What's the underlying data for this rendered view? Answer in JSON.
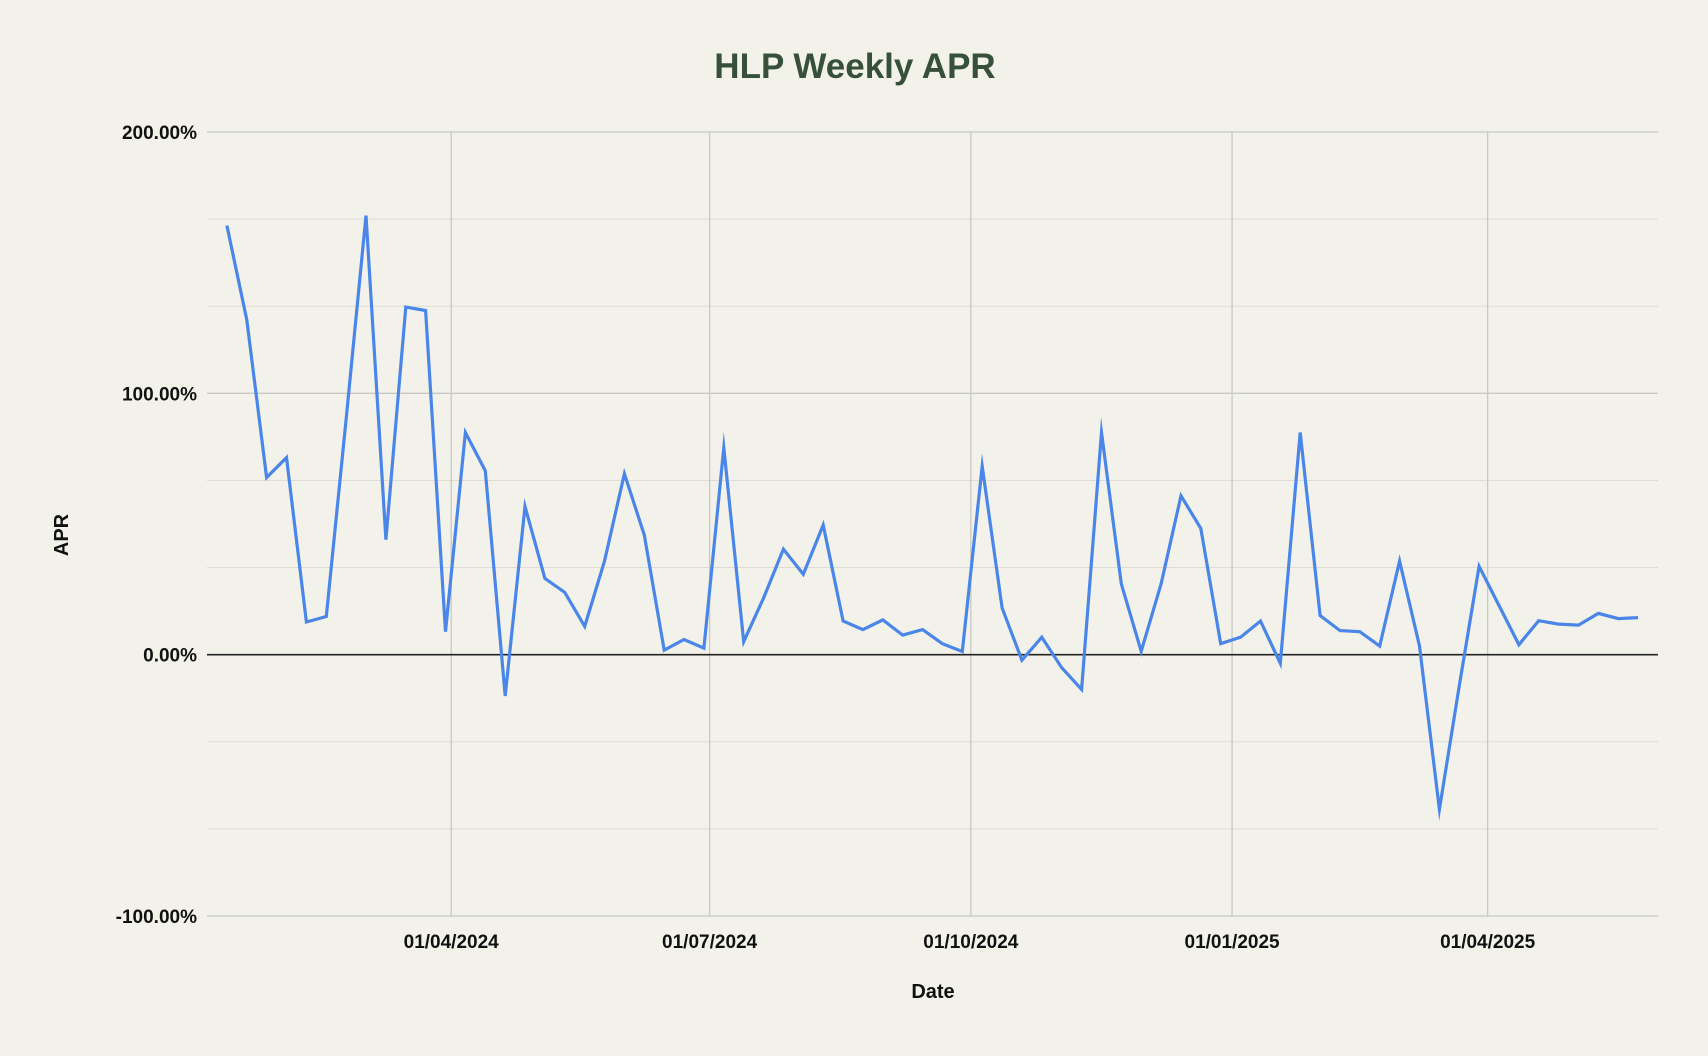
{
  "chart_data": {
    "type": "line",
    "title": "HLP Weekly APR",
    "xlabel": "Date",
    "ylabel": "APR",
    "ylim": [
      -100,
      200
    ],
    "y_ticks": [
      {
        "value": 200,
        "label": "200.00%"
      },
      {
        "value": 100,
        "label": "100.00%"
      },
      {
        "value": 0,
        "label": "0.00%"
      },
      {
        "value": -100,
        "label": "-100.00%"
      }
    ],
    "xlim": [
      "2024-01-06",
      "2025-05-31"
    ],
    "x_ticks": [
      {
        "date": "2024-04-01",
        "label": "01/04/2024"
      },
      {
        "date": "2024-07-01",
        "label": "01/07/2024"
      },
      {
        "date": "2024-10-01",
        "label": "01/10/2024"
      },
      {
        "date": "2025-01-01",
        "label": "01/01/2025"
      },
      {
        "date": "2025-04-01",
        "label": "01/04/2025"
      }
    ],
    "grid": true,
    "legend": "none",
    "colors": {
      "line": "#4a86e8",
      "grid": "#cfcfcf",
      "zero_line": "#222222",
      "title": "#37503a",
      "background": "#f3f2ea"
    },
    "series": [
      {
        "points": [
          [
            "2024-01-13",
            164.2
          ],
          [
            "2024-01-20",
            128.1
          ],
          [
            "2024-01-27",
            67.8
          ],
          [
            "2024-02-03",
            75.4
          ],
          [
            "2024-02-10",
            12.5
          ],
          [
            "2024-02-17",
            14.6
          ],
          [
            "2024-02-24",
            90.0
          ],
          [
            "2024-03-02",
            168.0
          ],
          [
            "2024-03-09",
            44.0
          ],
          [
            "2024-03-16",
            133.0
          ],
          [
            "2024-03-23",
            131.7
          ],
          [
            "2024-03-30",
            8.8
          ],
          [
            "2024-04-06",
            85.0
          ],
          [
            "2024-04-13",
            70.4
          ],
          [
            "2024-04-20",
            -15.8
          ],
          [
            "2024-04-27",
            56.7
          ],
          [
            "2024-05-04",
            29.2
          ],
          [
            "2024-05-11",
            23.8
          ],
          [
            "2024-05-18",
            10.8
          ],
          [
            "2024-05-25",
            35.8
          ],
          [
            "2024-06-01",
            69.2
          ],
          [
            "2024-06-08",
            45.8
          ],
          [
            "2024-06-15",
            1.7
          ],
          [
            "2024-06-22",
            5.8
          ],
          [
            "2024-06-29",
            2.5
          ],
          [
            "2024-07-06",
            79.2
          ],
          [
            "2024-07-13",
            5.0
          ],
          [
            "2024-07-20",
            21.6
          ],
          [
            "2024-07-27",
            40.4
          ],
          [
            "2024-08-03",
            30.8
          ],
          [
            "2024-08-10",
            49.6
          ],
          [
            "2024-08-17",
            12.9
          ],
          [
            "2024-08-24",
            9.6
          ],
          [
            "2024-08-31",
            13.3
          ],
          [
            "2024-09-07",
            7.5
          ],
          [
            "2024-09-14",
            9.6
          ],
          [
            "2024-09-21",
            4.2
          ],
          [
            "2024-09-28",
            1.2
          ],
          [
            "2024-10-05",
            72.1
          ],
          [
            "2024-10-12",
            17.9
          ],
          [
            "2024-10-19",
            -2.1
          ],
          [
            "2024-10-26",
            6.7
          ],
          [
            "2024-11-02",
            -5.0
          ],
          [
            "2024-11-09",
            -13.3
          ],
          [
            "2024-11-16",
            85.0
          ],
          [
            "2024-11-23",
            27.1
          ],
          [
            "2024-11-30",
            1.3
          ],
          [
            "2024-12-07",
            27.1
          ],
          [
            "2024-12-14",
            60.8
          ],
          [
            "2024-12-21",
            48.3
          ],
          [
            "2024-12-28",
            4.2
          ],
          [
            "2025-01-04",
            6.7
          ],
          [
            "2025-01-11",
            12.9
          ],
          [
            "2025-01-18",
            -3.3
          ],
          [
            "2025-01-25",
            85.0
          ],
          [
            "2025-02-01",
            15.0
          ],
          [
            "2025-02-08",
            9.2
          ],
          [
            "2025-02-15",
            8.8
          ],
          [
            "2025-02-22",
            3.3
          ],
          [
            "2025-03-01",
            35.8
          ],
          [
            "2025-03-08",
            3.3
          ],
          [
            "2025-03-15",
            -59.2
          ],
          [
            "2025-03-22",
            -12.1
          ],
          [
            "2025-03-29",
            33.8
          ],
          [
            "2025-04-05",
            18.8
          ],
          [
            "2025-04-12",
            3.8
          ],
          [
            "2025-04-19",
            13.0
          ],
          [
            "2025-04-26",
            11.7
          ],
          [
            "2025-05-03",
            11.3
          ],
          [
            "2025-05-10",
            15.8
          ],
          [
            "2025-05-17",
            13.8
          ],
          [
            "2025-05-24",
            14.2
          ]
        ]
      }
    ]
  }
}
